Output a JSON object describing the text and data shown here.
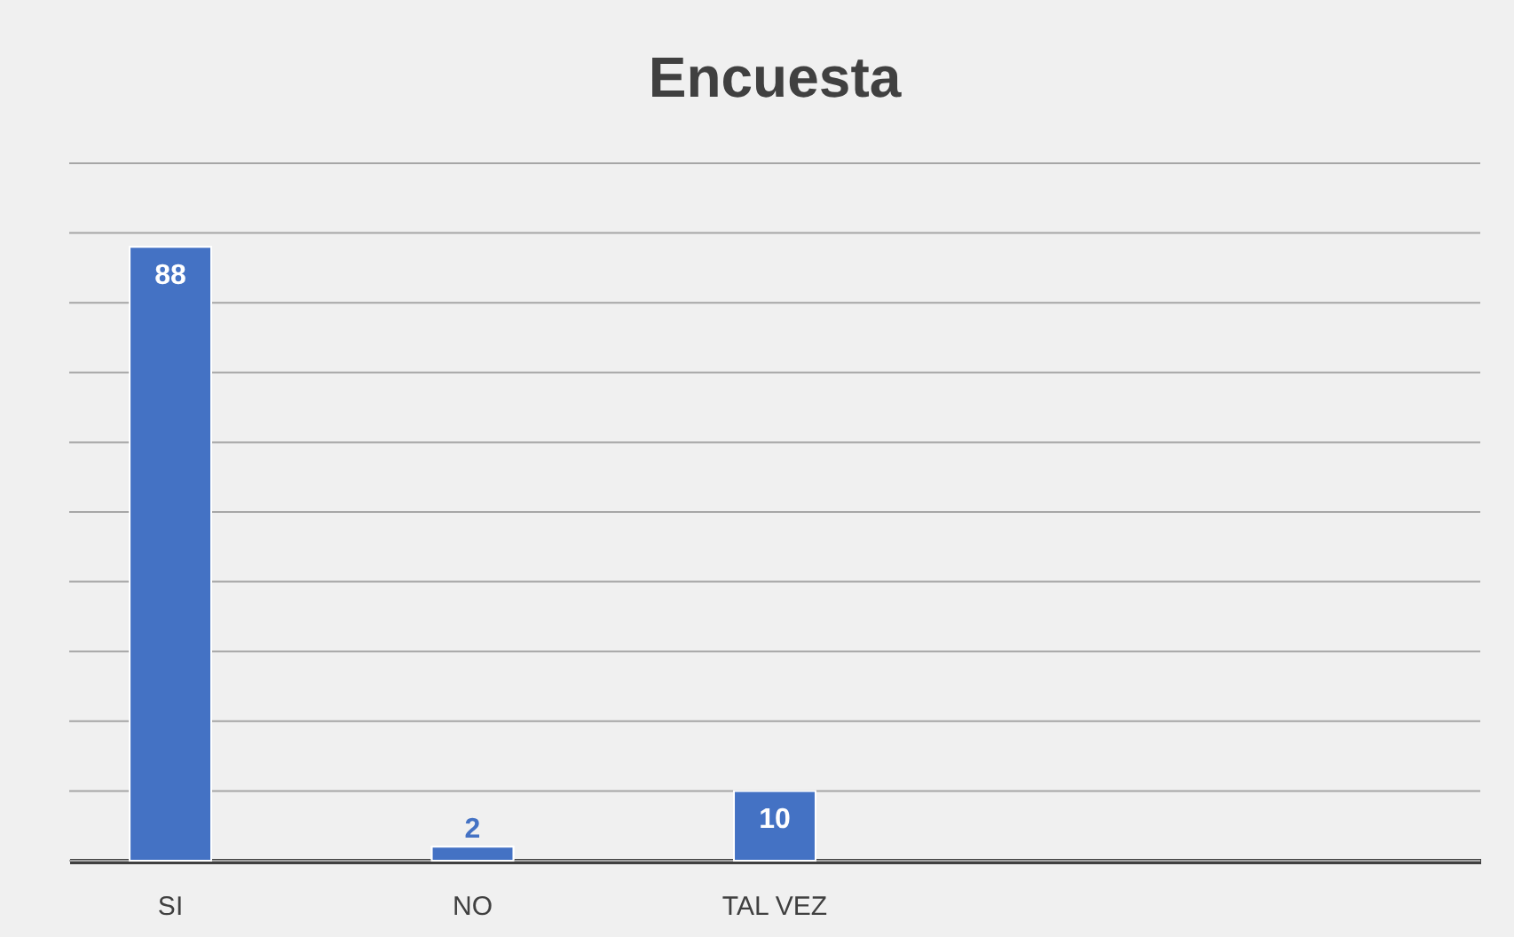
{
  "chart_data": {
    "type": "bar",
    "title": "Encuesta",
    "categories": [
      "SI",
      "NO",
      "TAL VEZ",
      null,
      null
    ],
    "values": [
      88,
      2,
      10,
      null,
      null
    ],
    "color": "#4472c4",
    "ylim": [
      0,
      100
    ],
    "yticks": [
      {
        "value": 0,
        "label": null
      },
      {
        "value": 10,
        "label": null
      },
      {
        "value": 20,
        "label": null
      },
      {
        "value": 30,
        "label": null
      },
      {
        "value": 40,
        "label": null
      },
      {
        "value": 50,
        "label": null
      },
      {
        "value": 60,
        "label": null
      },
      {
        "value": 70,
        "label": null
      },
      {
        "value": 80,
        "label": null
      },
      {
        "value": 90,
        "label": null
      },
      {
        "value": 100,
        "label": null
      }
    ],
    "grid": "y",
    "data_labels": true,
    "tick_labels": "x"
  }
}
